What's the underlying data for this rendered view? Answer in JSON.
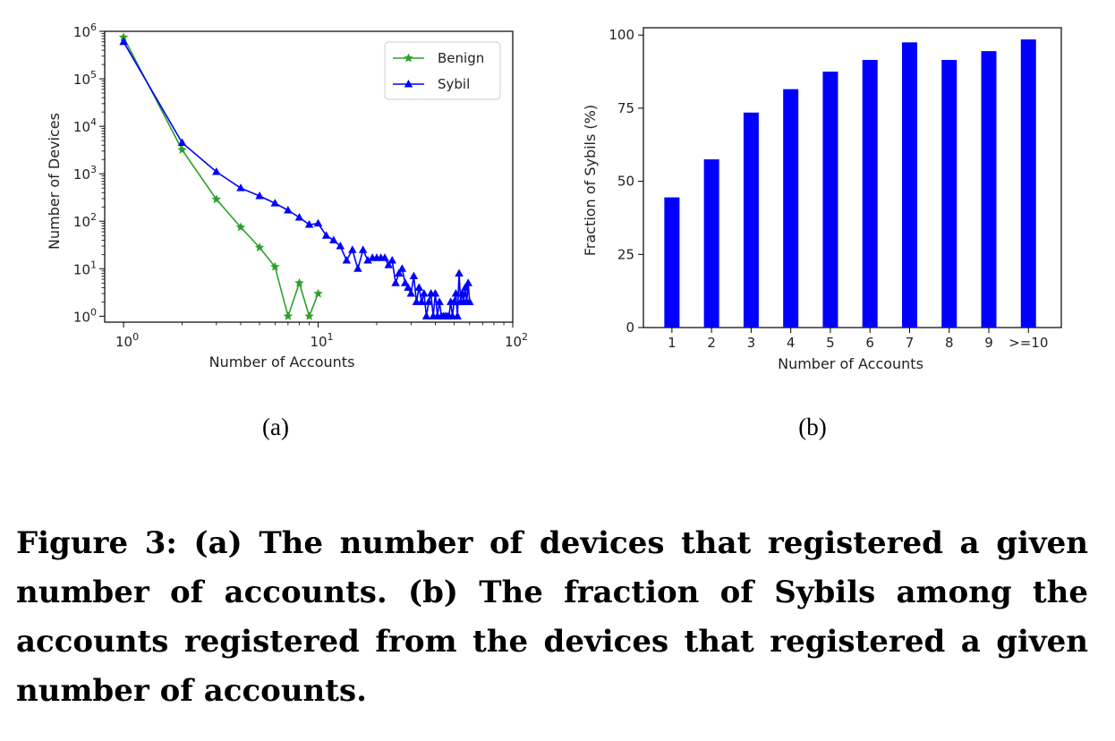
{
  "figure": {
    "sublabel_a": "(a)",
    "sublabel_b": "(b)",
    "caption": "Figure 3: (a) The number of devices that registered a given number of accounts. (b) The fraction of Sybils among the accounts registered from the devices that registered a given number of accounts."
  },
  "chart_data": [
    {
      "type": "line",
      "xlabel": "Number of Accounts",
      "ylabel": "Number of Devices",
      "xscale": "log",
      "yscale": "log",
      "xlim": [
        1,
        100
      ],
      "ylim": [
        1,
        1000000
      ],
      "xticks": [
        1,
        10,
        100
      ],
      "yticks": [
        1,
        10,
        100,
        1000,
        10000,
        100000,
        1000000
      ],
      "grid": false,
      "legend": "top-right",
      "series": [
        {
          "name": "Benign",
          "color": "#2ca02c",
          "marker": "star",
          "x": [
            1,
            2,
            3,
            4,
            5,
            6,
            7,
            8,
            9,
            10
          ],
          "y": [
            750000,
            3200,
            290,
            75,
            28,
            11,
            1,
            5,
            1,
            3
          ]
        },
        {
          "name": "Sybil",
          "color": "#0000ff",
          "marker": "triangle",
          "x": [
            1,
            2,
            3,
            4,
            5,
            6,
            7,
            8,
            9,
            10,
            11,
            12,
            13,
            14,
            15,
            16,
            17,
            18,
            19,
            20,
            21,
            22,
            23,
            24,
            25,
            26,
            27,
            28,
            29,
            30,
            31,
            32,
            33,
            34,
            35,
            36,
            37,
            38,
            39,
            40,
            41,
            42,
            43,
            44,
            45,
            46,
            47,
            48,
            49,
            50,
            51,
            52,
            53,
            54,
            55,
            56,
            57,
            58,
            59,
            60
          ],
          "y": [
            600000,
            4500,
            1100,
            500,
            340,
            240,
            170,
            120,
            85,
            90,
            50,
            40,
            30,
            15,
            25,
            10,
            25,
            15,
            17,
            17,
            17,
            17,
            12,
            15,
            5,
            8,
            10,
            5,
            4,
            3,
            7,
            2,
            4,
            2,
            3,
            1,
            2,
            3,
            1,
            3,
            1,
            2,
            1,
            1,
            1,
            1,
            1,
            2,
            1,
            2,
            3,
            1,
            8,
            2,
            3,
            2,
            4,
            2,
            5,
            2
          ]
        }
      ]
    },
    {
      "type": "bar",
      "xlabel": "Number of Accounts",
      "ylabel": "Fraction of Sybils (%)",
      "categories": [
        "1",
        "2",
        "3",
        "4",
        "5",
        "6",
        "7",
        "8",
        "9",
        ">=10"
      ],
      "values": [
        44.5,
        57.5,
        73.5,
        81.5,
        87.5,
        91.5,
        97.5,
        91.5,
        94.5,
        98.5
      ],
      "ylim": [
        0,
        100
      ],
      "yticks": [
        0,
        25,
        50,
        75,
        100
      ],
      "bar_color": "#0000ff",
      "grid": false
    }
  ]
}
